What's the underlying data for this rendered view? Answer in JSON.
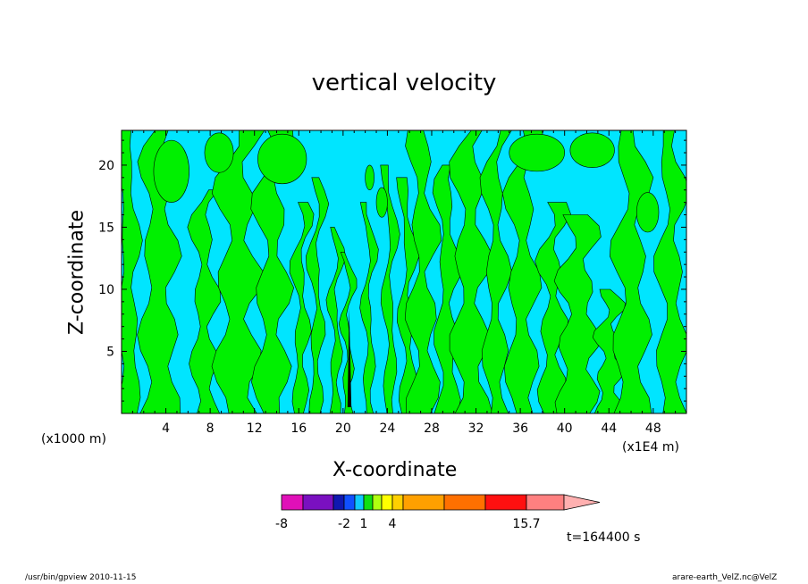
{
  "chart_data": {
    "type": "heatmap",
    "title": "vertical velocity",
    "xlabel": "X-coordinate",
    "ylabel": "Z-coordinate",
    "x_unit_left": "(x1000 m)",
    "x_unit_right": "(x1E4 m)",
    "xlim": [
      0,
      51
    ],
    "ylim": [
      0,
      22.8
    ],
    "x_ticks": [
      4,
      8,
      12,
      16,
      20,
      24,
      28,
      32,
      36,
      40,
      44,
      48
    ],
    "y_ticks": [
      5,
      10,
      15,
      20
    ],
    "colorbar": {
      "labels": [
        {
          "value": -8,
          "text": "-8"
        },
        {
          "value": -2,
          "text": "-2"
        },
        {
          "value": 1,
          "text": "1"
        },
        {
          "value": 4,
          "text": "4"
        },
        {
          "value": 15.7,
          "text": "15.7"
        }
      ],
      "colors": [
        "#e010b8",
        "#7a10c0",
        "#1018b0",
        "#1050ff",
        "#10c8ff",
        "#10e010",
        "#b0ff10",
        "#ffff00",
        "#ffd000",
        "#ffa000",
        "#ff7000",
        "#ff1010",
        "#ff8080",
        "#ffb0b0"
      ]
    },
    "field_colors": {
      "negative": "#00e5ff",
      "positive": "#00f000",
      "strong_positive": "#000000"
    },
    "time_label": "t=164400 s"
  },
  "footer": {
    "left": "/usr/bin/gpview   2010-11-15",
    "right": "arare-earth_VelZ.nc@VelZ"
  }
}
